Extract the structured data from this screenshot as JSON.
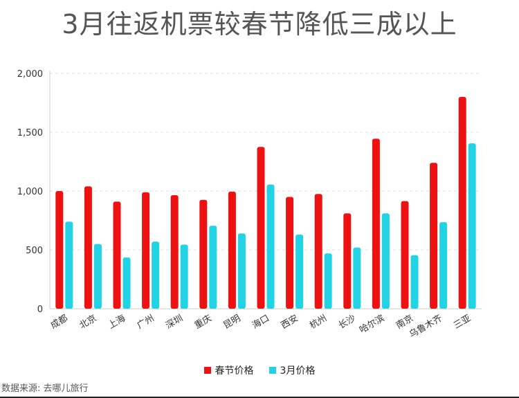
{
  "chart_data": {
    "type": "bar",
    "title": "3月往返机票较春节降低三成以上",
    "categories": [
      "成都",
      "北京",
      "上海",
      "广州",
      "深圳",
      "重庆",
      "昆明",
      "海口",
      "西安",
      "杭州",
      "长沙",
      "哈尔滨",
      "南京",
      "乌鲁木齐",
      "三亚"
    ],
    "series": [
      {
        "name": "春节价格",
        "color": "#ee1111",
        "values": [
          1000,
          1040,
          910,
          990,
          965,
          925,
          995,
          1375,
          950,
          975,
          810,
          1445,
          915,
          1240,
          1800
        ]
      },
      {
        "name": "3月价格",
        "color": "#22d3e6",
        "values": [
          740,
          550,
          435,
          570,
          545,
          705,
          640,
          1055,
          630,
          470,
          520,
          810,
          455,
          735,
          1405
        ]
      }
    ],
    "ylim": [
      0,
      2000
    ],
    "yticks": [
      "0",
      "500",
      "1,000",
      "1,500",
      "2,000"
    ],
    "ytick_values": [
      0,
      500,
      1000,
      1500,
      2000
    ],
    "grid": true,
    "legend_position": "bottom"
  },
  "source_note": "数据来源: 去哪儿旅行"
}
